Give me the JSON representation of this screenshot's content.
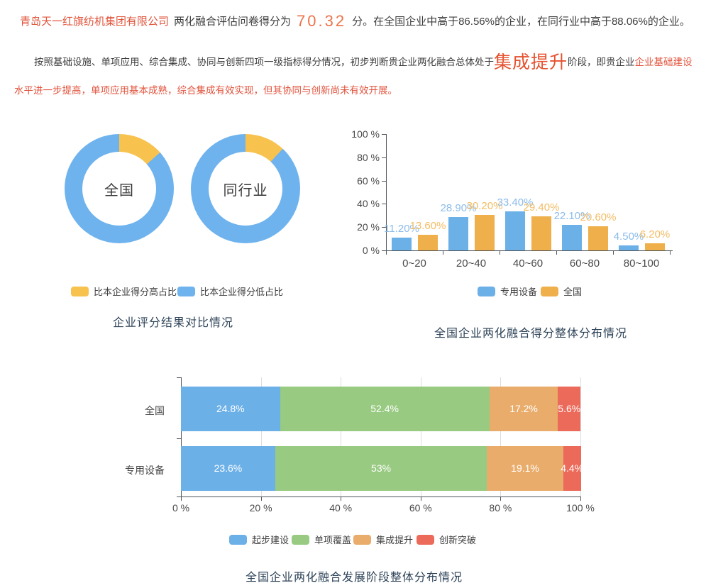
{
  "header": {
    "company": "青岛天一红旗纺机集团有限公司",
    "score_prefix": "两化融合评估问卷得分为",
    "score": "70.32",
    "score_suffix": "分。在全国企业中高于86.56%的企业，在同行业中高于88.06%的企业。",
    "analysis_lead": "按照基础设施、单项应用、综合集成、协同与创新四项一级指标得分情况，初步判断贵企业两化融合总体处于",
    "analysis_stage": "集成提升",
    "analysis_mid": "阶段，即贵企业",
    "analysis_highlight": "企业基础建设水平进一步提高，单项应用基本成熟，综合集成有效实现，但其协同与创新尚未有效开展。"
  },
  "text_colors": {
    "company": "#E0543A",
    "score": "#EC734A",
    "stage": "#E5522F",
    "highlight": "#E2533C",
    "body": "#3D3D3D",
    "title": "#2C4257"
  },
  "chart_data": [
    {
      "type": "pie",
      "title": "企业评分结果对比情况",
      "donuts": [
        {
          "label": "全国",
          "higher_pct": 13.44,
          "lower_pct": 86.56
        },
        {
          "label": "同行业",
          "higher_pct": 11.94,
          "lower_pct": 88.06
        }
      ],
      "legend": [
        {
          "label": "比本企业得分高占比",
          "color": "#F8C24F"
        },
        {
          "label": "比本企业得分低占比",
          "color": "#6FB3EE"
        }
      ],
      "legend_position": "bottom"
    },
    {
      "type": "bar",
      "title": "全国企业两化融合得分整体分布情况",
      "categories": [
        "0~20",
        "20~40",
        "40~60",
        "60~80",
        "80~100"
      ],
      "series": [
        {
          "name": "专用设备",
          "color": "#6CB0E8",
          "label_color": "#8CBCEA",
          "values": [
            11.2,
            28.9,
            33.4,
            22.1,
            4.5
          ],
          "labels": [
            "11.20%",
            "28.90%",
            "33.40%",
            "22.10%",
            "4.50%"
          ]
        },
        {
          "name": "全国",
          "color": "#EFAF4B",
          "label_color": "#F3BC63",
          "values": [
            13.6,
            30.2,
            29.4,
            20.6,
            6.2
          ],
          "labels": [
            "13.60%",
            "30.20%",
            "29.40%",
            "20.60%",
            "6.20%"
          ]
        }
      ],
      "ylabels": [
        "0 %",
        "20 %",
        "40 %",
        "60 %",
        "80 %",
        "100 %"
      ],
      "ylim": [
        0,
        100
      ],
      "grid": false,
      "legend_position": "bottom"
    },
    {
      "type": "stacked-bar-horizontal",
      "title": "全国企业两化融合发展阶段整体分布情况",
      "categories": [
        "全国",
        "专用设备"
      ],
      "series": [
        {
          "name": "起步建设",
          "color": "#6CB0E8",
          "values": [
            24.8,
            23.6
          ],
          "labels": [
            "24.8%",
            "23.6%"
          ]
        },
        {
          "name": "单项覆盖",
          "color": "#98CA81",
          "values": [
            52.4,
            53
          ],
          "labels": [
            "52.4%",
            "53%"
          ]
        },
        {
          "name": "集成提升",
          "color": "#E9AC6B",
          "values": [
            17.2,
            19.1
          ],
          "labels": [
            "17.2%",
            "19.1%"
          ]
        },
        {
          "name": "创新突破",
          "color": "#EC6A5A",
          "values": [
            5.6,
            4.4
          ],
          "labels": [
            "5.6%",
            "4.4%"
          ]
        }
      ],
      "xlabels": [
        "0 %",
        "20 %",
        "40 %",
        "60 %",
        "80 %",
        "100 %"
      ],
      "xlim": [
        0,
        100
      ],
      "grid": true,
      "legend_position": "bottom"
    }
  ]
}
